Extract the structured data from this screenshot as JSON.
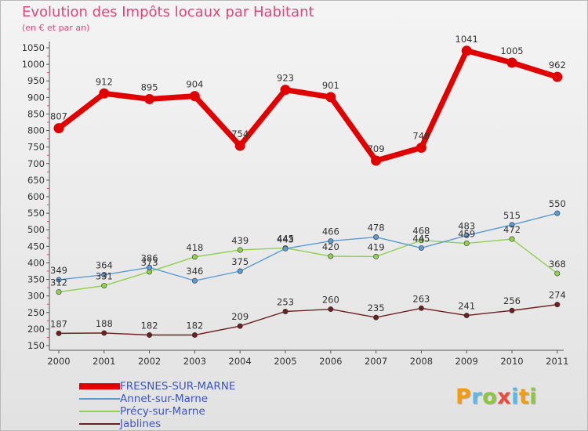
{
  "title": "Evolution des Impôts locaux par Habitant",
  "subtitle": "(en € et par an)",
  "chart_data": {
    "type": "line",
    "x": [
      "2000",
      "2001",
      "2002",
      "2003",
      "2004",
      "2005",
      "2006",
      "2007",
      "2008",
      "2009",
      "2010",
      "2011"
    ],
    "ylim": [
      150,
      1050
    ],
    "yticks": [
      150,
      200,
      250,
      300,
      350,
      400,
      450,
      500,
      550,
      600,
      650,
      700,
      750,
      800,
      850,
      900,
      950,
      1000,
      1050
    ],
    "grid": false,
    "legend_position": "bottom-left",
    "series": [
      {
        "name": "FRESNES-SUR-MARNE",
        "color": "#e00000",
        "values": [
          807,
          912,
          895,
          904,
          754,
          923,
          901,
          709,
          748,
          1041,
          1005,
          962
        ]
      },
      {
        "name": "Annet-sur-Marne",
        "color": "#5b9bd5",
        "values": [
          349,
          364,
          386,
          346,
          375,
          443,
          466,
          478,
          445,
          483,
          515,
          550
        ]
      },
      {
        "name": "Précy-sur-Marne",
        "color": "#8fd14f",
        "values": [
          312,
          331,
          373,
          418,
          439,
          445,
          420,
          419,
          468,
          459,
          472,
          368
        ]
      },
      {
        "name": "Jablines",
        "color": "#6b1f1f",
        "values": [
          187,
          188,
          182,
          182,
          209,
          253,
          260,
          235,
          263,
          241,
          256,
          274
        ]
      }
    ]
  },
  "logo": {
    "letters": [
      "P",
      "r",
      "o",
      "x",
      "i",
      "t",
      "i"
    ],
    "colors": [
      "#f39c12",
      "#5ab8e6",
      "#8cc63f",
      "#e74c3c",
      "#5ab8e6",
      "#f39c12",
      "#8cc63f"
    ]
  }
}
